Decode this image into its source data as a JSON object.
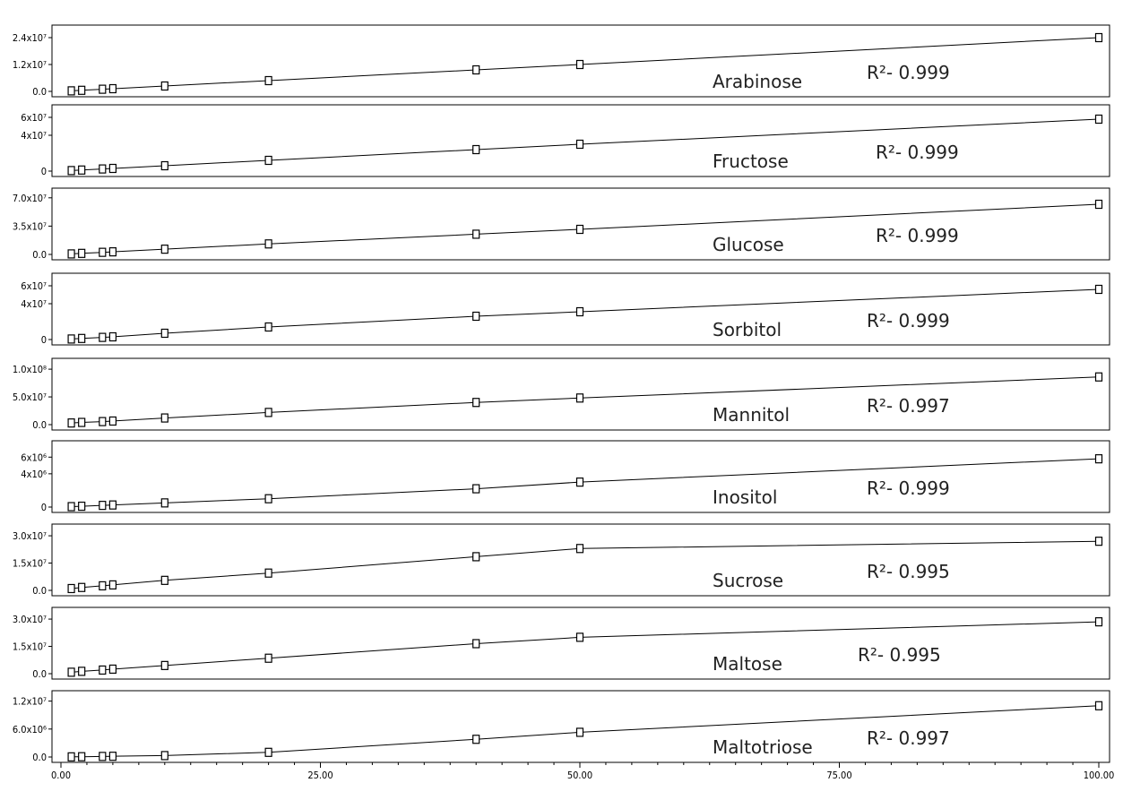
{
  "chart_data": {
    "type": "scatter",
    "x_ticks": [
      "0.00",
      "25.00",
      "50.00",
      "75.00",
      "100.00"
    ],
    "xlim": [
      0,
      100
    ],
    "x": [
      1,
      2,
      4,
      5,
      10,
      20,
      40,
      50,
      100
    ],
    "fit_line": true,
    "grid": false,
    "panels": [
      {
        "name": "Arabinose",
        "r2_label": "R²- 0.999",
        "ylim": [
          0,
          26000000
        ],
        "y_ticks": [
          {
            "value": 0,
            "label": "0.0"
          },
          {
            "value": 12000000,
            "label": "1.2x10⁷"
          },
          {
            "value": 24000000,
            "label": "2.4x10⁷"
          }
        ],
        "y": [
          240000,
          480000,
          960000,
          1200000,
          2400000,
          4800000,
          9600000,
          12000000,
          24000000
        ]
      },
      {
        "name": "Fructose",
        "r2_label": "R²- 0.999",
        "ylim": [
          0,
          65000000
        ],
        "y_ticks": [
          {
            "value": 0,
            "label": "0"
          },
          {
            "value": 40000000,
            "label": "4x10⁷"
          },
          {
            "value": 60000000,
            "label": "6x10⁷"
          }
        ],
        "y": [
          600000,
          1200000,
          2400000,
          3000000,
          6000000,
          12000000,
          24000000,
          30000000,
          58000000
        ]
      },
      {
        "name": "Glucose",
        "r2_label": "R²- 0.999",
        "ylim": [
          0,
          72000000
        ],
        "y_ticks": [
          {
            "value": 0,
            "label": "0.0"
          },
          {
            "value": 35000000,
            "label": "3.5x10⁷"
          },
          {
            "value": 70000000,
            "label": "7.0x10⁷"
          }
        ],
        "y": [
          650000,
          1300000,
          2600000,
          3200000,
          6500000,
          13000000,
          25000000,
          31000000,
          62000000
        ]
      },
      {
        "name": "Sorbitol",
        "r2_label": "R²- 0.999",
        "ylim": [
          0,
          65000000
        ],
        "y_ticks": [
          {
            "value": 0,
            "label": "0"
          },
          {
            "value": 40000000,
            "label": "4x10⁷"
          },
          {
            "value": 60000000,
            "label": "6x10⁷"
          }
        ],
        "y": [
          600000,
          1200000,
          2400000,
          3000000,
          7000000,
          14000000,
          26000000,
          31000000,
          56000000
        ]
      },
      {
        "name": "Mannitol",
        "r2_label": "R²- 0.997",
        "ylim": [
          0,
          105000000
        ],
        "y_ticks": [
          {
            "value": 0,
            "label": "0.0"
          },
          {
            "value": 50000000,
            "label": "5.0x10⁷"
          },
          {
            "value": 100000000,
            "label": "1.0x10⁸"
          }
        ],
        "y": [
          3000000,
          4000000,
          5500000,
          6500000,
          12000000,
          22000000,
          40000000,
          48000000,
          86000000
        ]
      },
      {
        "name": "Inositol",
        "r2_label": "R²- 0.999",
        "ylim": [
          0,
          7000000
        ],
        "y_ticks": [
          {
            "value": 0,
            "label": "0"
          },
          {
            "value": 4000000,
            "label": "4x10⁶"
          },
          {
            "value": 6000000,
            "label": "6x10⁶"
          }
        ],
        "y": [
          50000,
          100000,
          200000,
          250000,
          500000,
          1000000,
          2200000,
          3000000,
          5800000
        ]
      },
      {
        "name": "Sucrose",
        "r2_label": "R²- 0.995",
        "ylim": [
          0,
          32000000
        ],
        "y_ticks": [
          {
            "value": 0,
            "label": "0.0"
          },
          {
            "value": 15000000,
            "label": "1.5x10⁷"
          },
          {
            "value": 30000000,
            "label": "3.0x10⁷"
          }
        ],
        "y": [
          1000000,
          1600000,
          2500000,
          3000000,
          5500000,
          9500000,
          18500000,
          23000000,
          27000000
        ]
      },
      {
        "name": "Maltose",
        "r2_label": "R²- 0.995",
        "ylim": [
          0,
          32000000
        ],
        "y_ticks": [
          {
            "value": 0,
            "label": "0.0"
          },
          {
            "value": 15000000,
            "label": "1.5x10⁷"
          },
          {
            "value": 30000000,
            "label": "3.0x10⁷"
          }
        ],
        "y": [
          800000,
          1300000,
          2000000,
          2500000,
          4500000,
          8500000,
          16500000,
          20000000,
          28500000
        ]
      },
      {
        "name": "Maltotriose",
        "r2_label": "R²- 0.997",
        "ylim": [
          0,
          12500000
        ],
        "y_ticks": [
          {
            "value": 0,
            "label": "0.0"
          },
          {
            "value": 6000000,
            "label": "6.0x10⁶"
          },
          {
            "value": 12000000,
            "label": "1.2x10⁷"
          }
        ],
        "y": [
          30000,
          60000,
          120000,
          160000,
          300000,
          1000000,
          3800000,
          5300000,
          11000000
        ]
      }
    ]
  }
}
